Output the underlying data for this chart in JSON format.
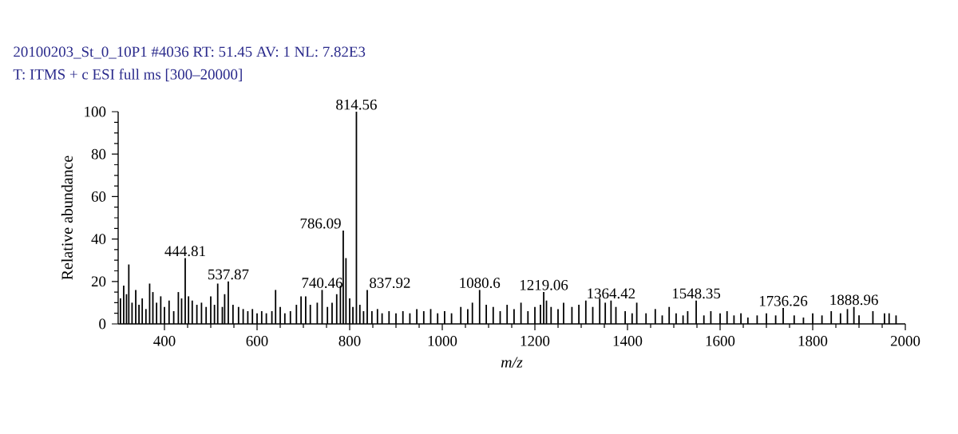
{
  "chart_data": {
    "type": "bar",
    "title": "20100203_St_0_10P1 #4036 RT: 51.45 AV: 1 NL: 7.82E3",
    "subtitle": "T: ITMS + c ESI full ms [300–20000]",
    "xlabel": "m/z",
    "ylabel": "Relative abundance",
    "color": "#000000",
    "xlim": [
      300,
      2000
    ],
    "ylim": [
      0,
      100
    ],
    "xticks": [
      400,
      600,
      800,
      1000,
      1200,
      1400,
      1600,
      1800,
      2000
    ],
    "yticks": [
      0,
      20,
      40,
      60,
      80,
      100
    ],
    "x": [
      305,
      312,
      318,
      323,
      330,
      338,
      345,
      352,
      360,
      368,
      375,
      383,
      392,
      400,
      410,
      420,
      430,
      437,
      444.81,
      452,
      460,
      470,
      480,
      490,
      500,
      508,
      515,
      525,
      530,
      537.87,
      548,
      560,
      570,
      580,
      590,
      600,
      610,
      620,
      632,
      640,
      650,
      660,
      672,
      685,
      695,
      705,
      715,
      730,
      740.46,
      752,
      762,
      772,
      780,
      786.09,
      792,
      800,
      807,
      814.56,
      822,
      830,
      837.92,
      848,
      860,
      870,
      885,
      900,
      915,
      930,
      945,
      960,
      975,
      990,
      1005,
      1020,
      1040,
      1055,
      1065,
      1080.6,
      1095,
      1110,
      1125,
      1140,
      1155,
      1170,
      1185,
      1200,
      1212,
      1219.06,
      1225,
      1235,
      1250,
      1262,
      1280,
      1295,
      1310,
      1325,
      1340,
      1352,
      1364.42,
      1375,
      1395,
      1410,
      1420,
      1440,
      1460,
      1475,
      1490,
      1505,
      1520,
      1530,
      1548.35,
      1565,
      1580,
      1600,
      1615,
      1630,
      1645,
      1660,
      1680,
      1700,
      1720,
      1736.26,
      1760,
      1780,
      1800,
      1820,
      1840,
      1860,
      1875,
      1888.96,
      1900,
      1930,
      1955,
      1965,
      1980
    ],
    "values": [
      12,
      18,
      14,
      28,
      10,
      16,
      9,
      12,
      7,
      19,
      15,
      10,
      13,
      8,
      11,
      6,
      15,
      12,
      31,
      13,
      11,
      9,
      10,
      8,
      13,
      9,
      19,
      8,
      14,
      20,
      9,
      8,
      7,
      6,
      7,
      5,
      6,
      5,
      6,
      16,
      8,
      5,
      6,
      9,
      13,
      13,
      9,
      10,
      16,
      8,
      10,
      14,
      18,
      44,
      31,
      12,
      8,
      100,
      9,
      6,
      16,
      6,
      7,
      5,
      6,
      5,
      6,
      5,
      7,
      6,
      7,
      5,
      6,
      5,
      8,
      7,
      10,
      16,
      9,
      8,
      6,
      9,
      7,
      10,
      6,
      8,
      9,
      15,
      11,
      8,
      7,
      10,
      8,
      9,
      11,
      8,
      12,
      10,
      11,
      8,
      6,
      5,
      10,
      5,
      7,
      4,
      8,
      5,
      4,
      6,
      11,
      4,
      6,
      5,
      6,
      4,
      5,
      3,
      4,
      5,
      4,
      7.5,
      4,
      3,
      5,
      4,
      6,
      5,
      7,
      8,
      4,
      6,
      5,
      5,
      4
    ],
    "annotations": [
      {
        "text": "444.81",
        "x": 444.81,
        "y": 31
      },
      {
        "text": "537.87",
        "x": 537.87,
        "y": 20
      },
      {
        "text": "740.46",
        "x": 740.46,
        "y": 16
      },
      {
        "text": "786.09",
        "x": 786.09,
        "y": 44
      },
      {
        "text": "814.56",
        "x": 814.56,
        "y": 100
      },
      {
        "text": "837.92",
        "x": 837.92,
        "y": 16
      },
      {
        "text": "1080.6",
        "x": 1080.6,
        "y": 16
      },
      {
        "text": "1219.06",
        "x": 1219.06,
        "y": 15
      },
      {
        "text": "1364.42",
        "x": 1364.42,
        "y": 11
      },
      {
        "text": "1548.35",
        "x": 1548.35,
        "y": 11
      },
      {
        "text": "1736.26",
        "x": 1736.26,
        "y": 7.5
      },
      {
        "text": "1888.96",
        "x": 1888.96,
        "y": 8
      }
    ]
  }
}
